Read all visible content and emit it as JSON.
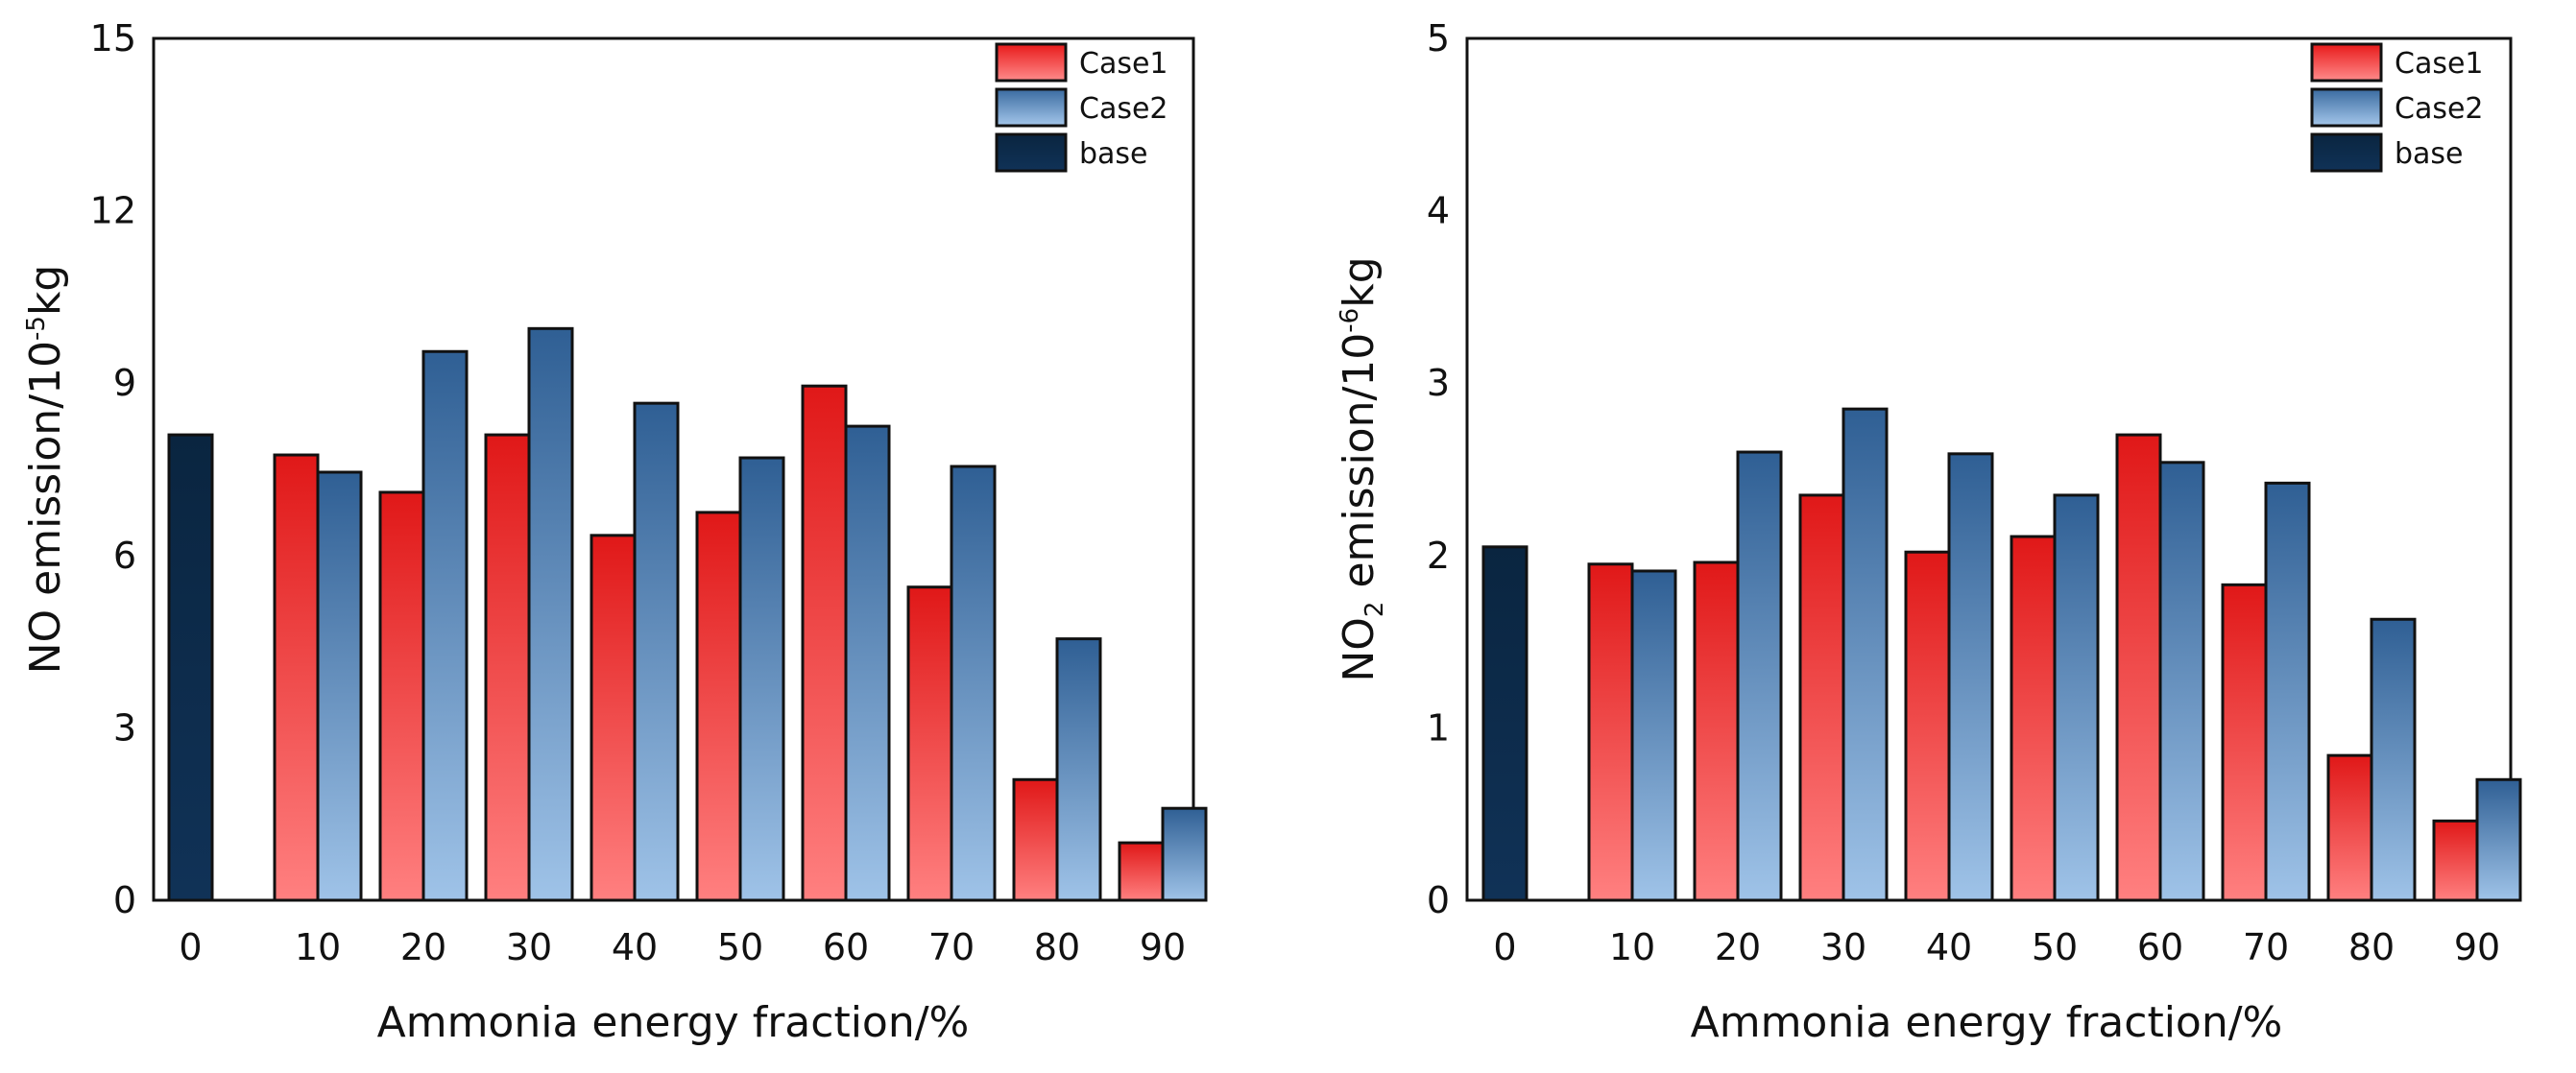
{
  "chart_data": [
    {
      "type": "bar",
      "categories": [
        "0",
        "10",
        "20",
        "30",
        "40",
        "50",
        "60",
        "70",
        "80",
        "90"
      ],
      "series": [
        {
          "name": "base",
          "values": [
            8.1,
            null,
            null,
            null,
            null,
            null,
            null,
            null,
            null,
            null
          ]
        },
        {
          "name": "Case1",
          "values": [
            null,
            7.75,
            7.1,
            8.1,
            6.35,
            6.75,
            8.95,
            5.45,
            2.1,
            1.0
          ]
        },
        {
          "name": "Case2",
          "values": [
            null,
            7.45,
            9.55,
            9.95,
            8.65,
            7.7,
            8.25,
            7.55,
            4.55,
            1.6
          ]
        }
      ],
      "xlabel": "Ammonia energy fraction/%",
      "ylabel_main": "NO emission/10",
      "ylabel_sup": "-5",
      "ylabel_unit": "kg",
      "ylim": [
        0,
        15
      ],
      "yticks": [
        "0",
        "3",
        "6",
        "9",
        "12",
        "15"
      ],
      "legend": [
        "Case1",
        "Case2",
        "base"
      ],
      "legend_position": "top-right",
      "grid": false
    },
    {
      "type": "bar",
      "categories": [
        "0",
        "10",
        "20",
        "30",
        "40",
        "50",
        "60",
        "70",
        "80",
        "90"
      ],
      "series": [
        {
          "name": "base",
          "values": [
            2.05,
            null,
            null,
            null,
            null,
            null,
            null,
            null,
            null,
            null
          ]
        },
        {
          "name": "Case1",
          "values": [
            null,
            1.95,
            1.96,
            2.35,
            2.02,
            2.11,
            2.7,
            1.83,
            0.84,
            0.46
          ]
        },
        {
          "name": "Case2",
          "values": [
            null,
            1.91,
            2.6,
            2.85,
            2.59,
            2.35,
            2.54,
            2.42,
            1.63,
            0.7
          ]
        }
      ],
      "xlabel": "Ammonia energy fraction/%",
      "ylabel_main": "NO",
      "ylabel_sub": "2",
      "ylabel_rest": " emission/10",
      "ylabel_sup": "-6",
      "ylabel_unit": "kg",
      "ylim": [
        0,
        5
      ],
      "yticks": [
        "0",
        "1",
        "2",
        "3",
        "4",
        "5"
      ],
      "legend": [
        "Case1",
        "Case2",
        "base"
      ],
      "legend_position": "top-right",
      "grid": false
    }
  ],
  "colors": {
    "case1_top": "#e01818",
    "case1_bottom": "#ff7f7f",
    "case2_top": "#2f5f94",
    "case2_bottom": "#9cc0e6",
    "base": "#0b2a4a"
  }
}
